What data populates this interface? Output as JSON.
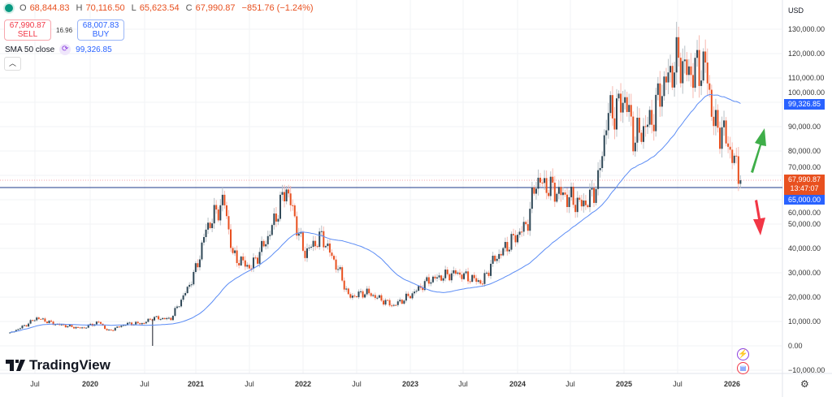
{
  "header": {
    "open_label": "O",
    "open": "68,844.83",
    "high_label": "H",
    "high": "70,116.50",
    "low_label": "L",
    "low": "65,623.54",
    "close_label": "C",
    "close": "67,990.87",
    "change": "−851.76 (−1.24%)",
    "sell_price": "67,990.87",
    "sell_label": "SELL",
    "spread": "16.96",
    "buy_price": "68,007.83",
    "buy_label": "BUY",
    "indicator_name": "SMA 50 close",
    "indicator_value": "99,326.85",
    "collapse_icon": "chevron-up-icon"
  },
  "branding": {
    "logo_text": "TradingView"
  },
  "price_axis": {
    "currency": "USD",
    "labels": [
      "130,000.00",
      "120,000.00",
      "110,000.00",
      "100,000.00",
      "90,000.00",
      "80,000.00",
      "70,000.00",
      "60,000.00",
      "50,000.00",
      "40,000.00",
      "30,000.00",
      "20,000.00",
      "10,000.00",
      "0.00",
      "−10,000.00"
    ],
    "sma_tag": "99,326.85",
    "price_tag": "67,990.87",
    "countdown": "13:47:07",
    "line_tag": "65,000.00"
  },
  "time_axis": {
    "labels": [
      "Jul",
      "2020",
      "Jul",
      "2021",
      "Jul",
      "2022",
      "Jul",
      "2023",
      "Jul",
      "2024",
      "Jul",
      "2025",
      "Jul",
      "2026"
    ]
  },
  "colors": {
    "up": "#2e4756",
    "down": "#e8501f",
    "sma": "#5b8cf5",
    "hline": "#1e3a8a",
    "arrow_up": "#3fae49",
    "arrow_down": "#f23645"
  },
  "chart_data": {
    "type": "candlestick",
    "interval": "weekly",
    "yrange": [
      -10000,
      130000
    ],
    "price_path": [
      [
        "2019-04",
        5200
      ],
      [
        "2019-06",
        9000
      ],
      [
        "2019-07",
        11500
      ],
      [
        "2019-09",
        9000
      ],
      [
        "2019-12",
        7200
      ],
      [
        "2020-02",
        9800
      ],
      [
        "2020-03",
        6000
      ],
      [
        "2020-05",
        9000
      ],
      [
        "2020-07",
        9300
      ],
      [
        "2020-08",
        11500
      ],
      [
        "2020-10",
        11000
      ],
      [
        "2020-12",
        24000
      ],
      [
        "2021-01",
        33000
      ],
      [
        "2021-02",
        48000
      ],
      [
        "2021-04",
        60000
      ],
      [
        "2021-05",
        37000
      ],
      [
        "2021-07",
        32000
      ],
      [
        "2021-09",
        45000
      ],
      [
        "2021-11",
        65000
      ],
      [
        "2022-01",
        38000
      ],
      [
        "2022-03",
        45000
      ],
      [
        "2022-05",
        30000
      ],
      [
        "2022-06",
        20000
      ],
      [
        "2022-08",
        22000
      ],
      [
        "2022-11",
        16500
      ],
      [
        "2023-01",
        21000
      ],
      [
        "2023-03",
        27000
      ],
      [
        "2023-06",
        30000
      ],
      [
        "2023-09",
        26000
      ],
      [
        "2023-10",
        34000
      ],
      [
        "2023-12",
        42000
      ],
      [
        "2024-02",
        50000
      ],
      [
        "2024-03",
        68000
      ],
      [
        "2024-06",
        62000
      ],
      [
        "2024-08",
        58000
      ],
      [
        "2024-09",
        60000
      ],
      [
        "2024-10",
        68000
      ],
      [
        "2024-11",
        95000
      ],
      [
        "2024-12",
        97000
      ],
      [
        "2025-01",
        102000
      ],
      [
        "2025-02",
        85000
      ],
      [
        "2025-04",
        93000
      ],
      [
        "2025-05",
        105000
      ],
      [
        "2025-07",
        118000
      ],
      [
        "2025-08",
        112000
      ],
      [
        "2025-10",
        115000
      ],
      [
        "2025-11",
        90000
      ],
      [
        "2025-12",
        88000
      ],
      [
        "2026-01",
        78000
      ],
      [
        "2026-02",
        67990
      ]
    ],
    "sma_period": 50,
    "horizontal_line": 65000,
    "last_close": 67990.87,
    "annotations": [
      "green up arrow",
      "red down arrow"
    ]
  }
}
